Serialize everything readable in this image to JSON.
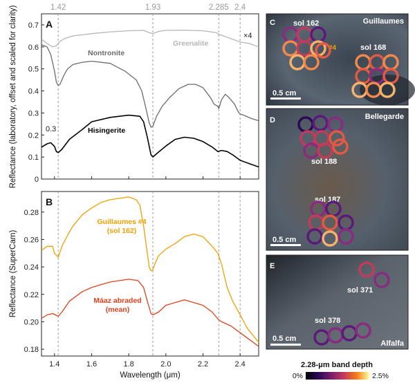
{
  "colors": {
    "nontronite": "#6b6b6b",
    "greenalite": "#b5b5b5",
    "hisingerite": "#000000",
    "guillaumes": "#f0a000",
    "maaz": "#e2401a",
    "refline": "#9a9a9a"
  },
  "chart_data": [
    {
      "panel": "A",
      "type": "line",
      "ylabel": "Reflectance (laboratory, offset and scaled for clarity)",
      "ylim": [
        0,
        0.75
      ],
      "yticks": [
        "0",
        "0.1",
        "0.2",
        "0.3",
        "0.4",
        "0.5",
        "0.6",
        "0.7"
      ],
      "xlim": [
        1.33,
        2.5
      ],
      "reference_lines": [
        {
          "x": 1.42,
          "label": "1.42"
        },
        {
          "x": 1.93,
          "label": "1.93"
        },
        {
          "x": 2.285,
          "label": "2.285"
        },
        {
          "x": 2.4,
          "label": "2.4"
        }
      ],
      "annotations": [
        "0.3",
        "×4"
      ],
      "series": [
        {
          "name": "Greenalite",
          "key": "greenalite",
          "x": [
            1.33,
            1.36,
            1.39,
            1.41,
            1.43,
            1.46,
            1.5,
            1.6,
            1.7,
            1.8,
            1.88,
            1.91,
            1.93,
            1.96,
            2.0,
            2.1,
            2.2,
            2.27,
            2.29,
            2.31,
            2.35,
            2.39,
            2.41,
            2.45,
            2.5
          ],
          "y": [
            0.635,
            0.615,
            0.6,
            0.605,
            0.625,
            0.64,
            0.65,
            0.66,
            0.668,
            0.673,
            0.675,
            0.665,
            0.66,
            0.67,
            0.675,
            0.676,
            0.673,
            0.665,
            0.655,
            0.65,
            0.638,
            0.625,
            0.62,
            0.615,
            0.6
          ]
        },
        {
          "name": "Nontronite",
          "key": "nontronite",
          "x": [
            1.33,
            1.36,
            1.38,
            1.4,
            1.41,
            1.42,
            1.43,
            1.45,
            1.47,
            1.5,
            1.55,
            1.6,
            1.7,
            1.78,
            1.84,
            1.87,
            1.89,
            1.91,
            1.92,
            1.93,
            1.95,
            1.98,
            2.02,
            2.07,
            2.12,
            2.16,
            2.2,
            2.24,
            2.26,
            2.28,
            2.285,
            2.3,
            2.32,
            2.34,
            2.37,
            2.39,
            2.4,
            2.42,
            2.46,
            2.5
          ],
          "y": [
            0.61,
            0.6,
            0.565,
            0.49,
            0.44,
            0.425,
            0.43,
            0.47,
            0.5,
            0.52,
            0.53,
            0.535,
            0.525,
            0.49,
            0.45,
            0.4,
            0.33,
            0.255,
            0.235,
            0.24,
            0.285,
            0.33,
            0.37,
            0.41,
            0.43,
            0.43,
            0.415,
            0.37,
            0.34,
            0.33,
            0.32,
            0.36,
            0.385,
            0.37,
            0.34,
            0.305,
            0.295,
            0.29,
            0.275,
            0.265
          ]
        },
        {
          "name": "Hisingerite",
          "key": "hisingerite",
          "x": [
            1.33,
            1.36,
            1.38,
            1.4,
            1.41,
            1.42,
            1.44,
            1.48,
            1.55,
            1.6,
            1.7,
            1.8,
            1.86,
            1.88,
            1.9,
            1.92,
            1.93,
            1.95,
            2.0,
            2.05,
            2.1,
            2.15,
            2.2,
            2.25,
            2.28,
            2.3,
            2.33,
            2.36,
            2.4,
            2.45,
            2.5
          ],
          "y": [
            0.145,
            0.16,
            0.165,
            0.148,
            0.125,
            0.12,
            0.135,
            0.18,
            0.225,
            0.26,
            0.28,
            0.29,
            0.285,
            0.26,
            0.19,
            0.11,
            0.1,
            0.115,
            0.15,
            0.18,
            0.19,
            0.185,
            0.17,
            0.145,
            0.125,
            0.13,
            0.125,
            0.11,
            0.085,
            0.07,
            0.055
          ]
        }
      ]
    },
    {
      "panel": "B",
      "type": "line",
      "xlabel": "Wavelength (μm)",
      "ylabel": "Reflectance (SuperCam)",
      "ylim": [
        0.175,
        0.295
      ],
      "yticks": [
        "0.18",
        "0.20",
        "0.22",
        "0.24",
        "0.26",
        "0.28"
      ],
      "xlim": [
        1.33,
        2.5
      ],
      "xticks": [
        "1.4",
        "1.6",
        "1.8",
        "2.0",
        "2.2",
        "2.4"
      ],
      "series": [
        {
          "name": "Guillaumes #4\n(sol 162)",
          "key": "guillaumes",
          "x": [
            1.33,
            1.36,
            1.39,
            1.4,
            1.42,
            1.44,
            1.47,
            1.5,
            1.55,
            1.6,
            1.65,
            1.7,
            1.75,
            1.8,
            1.84,
            1.86,
            1.88,
            1.9,
            1.91,
            1.92,
            1.93,
            1.94,
            1.96,
            2.0,
            2.05,
            2.1,
            2.15,
            2.2,
            2.25,
            2.28,
            2.3,
            2.33,
            2.36,
            2.38,
            2.4,
            2.42,
            2.44,
            2.47,
            2.5
          ],
          "y": [
            0.252,
            0.255,
            0.255,
            0.25,
            0.247,
            0.255,
            0.263,
            0.27,
            0.278,
            0.283,
            0.287,
            0.289,
            0.29,
            0.291,
            0.289,
            0.285,
            0.27,
            0.25,
            0.24,
            0.237,
            0.238,
            0.242,
            0.248,
            0.253,
            0.257,
            0.262,
            0.264,
            0.262,
            0.255,
            0.25,
            0.242,
            0.225,
            0.215,
            0.21,
            0.205,
            0.2,
            0.195,
            0.19,
            0.185
          ]
        },
        {
          "name": "Máaz abraded\n(mean)",
          "key": "maaz",
          "x": [
            1.33,
            1.36,
            1.39,
            1.42,
            1.44,
            1.48,
            1.55,
            1.6,
            1.7,
            1.8,
            1.85,
            1.88,
            1.9,
            1.92,
            1.93,
            1.96,
            2.0,
            2.1,
            2.2,
            2.25,
            2.28,
            2.3,
            2.35,
            2.4,
            2.45,
            2.5
          ],
          "y": [
            0.2025,
            0.205,
            0.206,
            0.204,
            0.207,
            0.215,
            0.222,
            0.225,
            0.229,
            0.231,
            0.23,
            0.225,
            0.215,
            0.206,
            0.205,
            0.207,
            0.212,
            0.216,
            0.212,
            0.207,
            0.202,
            0.2,
            0.197,
            0.192,
            0.187,
            0.182
          ]
        }
      ]
    },
    {
      "panel": "colorbar",
      "type": "heatmap",
      "title": "2.28-μm band depth",
      "range": [
        "0%",
        "2.5%"
      ]
    }
  ],
  "images": [
    {
      "letter": "C",
      "site": "Guillaumes",
      "labels": [
        "sol 162",
        "sol 168",
        "#4"
      ],
      "scale": "0.5 cm"
    },
    {
      "letter": "D",
      "site": "Bellegarde",
      "labels": [
        "sol 188",
        "sol 187"
      ],
      "scale": "0.5 cm"
    },
    {
      "letter": "E",
      "site": "Alfalfa",
      "labels": [
        "sol 371",
        "sol 378"
      ],
      "scale": "0.5 cm"
    }
  ],
  "labels": {
    "panelA": "A",
    "panelB": "B",
    "nontronite": "Nontronite",
    "greenalite": "Greenalite",
    "hisingerite": "Hisingerite",
    "guillaumes": "Guillaumes #4",
    "guillaumes_sol": "(sol 162)",
    "maaz": "Máaz abraded",
    "maaz_mean": "(mean)",
    "offset": "0.3",
    "scale_factor": "×4"
  }
}
